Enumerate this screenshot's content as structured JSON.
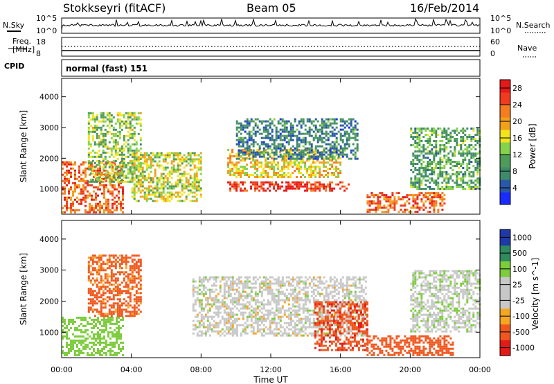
{
  "header": {
    "station": "Stokkseyri (fitACF)",
    "beam": "Beam 05",
    "date": "16/Feb/2014"
  },
  "top_panels": {
    "nsky_label": "N.Sky",
    "nsky_tick_high": "10^5",
    "nsky_tick_low": "10^0",
    "nsearch_label": "N.Search",
    "freq_label_1": "Freq.",
    "freq_label_2": "[MHz]",
    "freq_tick_high": "18",
    "freq_tick_low": "8",
    "nave_label": "Nave",
    "nave_tick_high": "60",
    "nave_tick_low": "0",
    "cpid_label": "CPID",
    "cpid_value": "normal (fast) 151"
  },
  "chart_data": [
    {
      "type": "heatmap",
      "name_shown": "Power",
      "ylabel": "Slant Range [km]",
      "xlabel": "Time UT",
      "xlim_hours": [
        0,
        24
      ],
      "ylim": [
        180,
        4600
      ],
      "y_ticks": [
        "1000",
        "2000",
        "3000",
        "4000"
      ],
      "x_ticks": [
        "00:00",
        "04:00",
        "08:00",
        "12:00",
        "16:00",
        "20:00",
        "00:00"
      ],
      "colorbar": {
        "label": "Power [dB]",
        "ticks": [
          "4",
          "8",
          "12",
          "16",
          "20",
          "24",
          "28"
        ],
        "range": [
          0,
          30
        ]
      },
      "echo_regions": [
        {
          "t_start": 0.0,
          "t_end": 3.5,
          "r_low": 250,
          "r_high": 1900,
          "level": 22
        },
        {
          "t_start": 1.5,
          "t_end": 4.5,
          "r_low": 1200,
          "r_high": 3500,
          "level": 12
        },
        {
          "t_start": 4.0,
          "t_end": 8.0,
          "r_low": 600,
          "r_high": 2200,
          "level": 14
        },
        {
          "t_start": 9.5,
          "t_end": 16.5,
          "r_low": 950,
          "r_high": 1250,
          "level": 25
        },
        {
          "t_start": 9.5,
          "t_end": 16.0,
          "r_low": 1400,
          "r_high": 2300,
          "level": 16
        },
        {
          "t_start": 10.0,
          "t_end": 17.0,
          "r_low": 2000,
          "r_high": 3300,
          "level": 6
        },
        {
          "t_start": 17.5,
          "t_end": 22.0,
          "r_low": 250,
          "r_high": 900,
          "level": 22
        },
        {
          "t_start": 20.0,
          "t_end": 24.0,
          "r_low": 1000,
          "r_high": 3000,
          "level": 9
        }
      ]
    },
    {
      "type": "heatmap",
      "name_shown": "Velocity",
      "ylabel": "Slant Range [km]",
      "xlabel": "Time UT",
      "xlim_hours": [
        0,
        24
      ],
      "ylim": [
        180,
        4600
      ],
      "y_ticks": [
        "1000",
        "2000",
        "3000",
        "4000"
      ],
      "x_ticks": [
        "00:00",
        "04:00",
        "08:00",
        "12:00",
        "16:00",
        "20:00",
        "00:00"
      ],
      "colorbar": {
        "label": "Velocity [m s^-1]",
        "ticks": [
          "1000",
          "500",
          "100",
          "25",
          "-25",
          "-100",
          "-500",
          "-1000"
        ]
      },
      "echo_regions": [
        {
          "t_start": 0.0,
          "t_end": 3.5,
          "r_low": 250,
          "r_high": 1500,
          "velocity": 60
        },
        {
          "t_start": 1.5,
          "t_end": 4.5,
          "r_low": 1500,
          "r_high": 3500,
          "velocity": -150
        },
        {
          "t_start": 7.5,
          "t_end": 17.5,
          "r_low": 900,
          "r_high": 2800,
          "velocity": 0
        },
        {
          "t_start": 14.5,
          "t_end": 17.5,
          "r_low": 400,
          "r_high": 2000,
          "velocity": -400
        },
        {
          "t_start": 17.5,
          "t_end": 22.5,
          "r_low": 250,
          "r_high": 900,
          "velocity": -200
        },
        {
          "t_start": 20.0,
          "t_end": 24.0,
          "r_low": 1000,
          "r_high": 3000,
          "velocity": 10
        }
      ]
    }
  ],
  "colors": {
    "power_scale": [
      "#1a2bff",
      "#2a58a8",
      "#3f8a6a",
      "#4f9b5a",
      "#86d24a",
      "#f3e41c",
      "#f0a01a",
      "#f57c20",
      "#f13a1e",
      "#e41a1a"
    ],
    "velocity_scale": [
      "#e41a1a",
      "#f0571e",
      "#f5a623",
      "#c8c8c8",
      "#c8c8c8",
      "#7ccc3c",
      "#2f8a5e",
      "#1e3aa8"
    ],
    "ground_scatter": "#bdbdbd"
  }
}
